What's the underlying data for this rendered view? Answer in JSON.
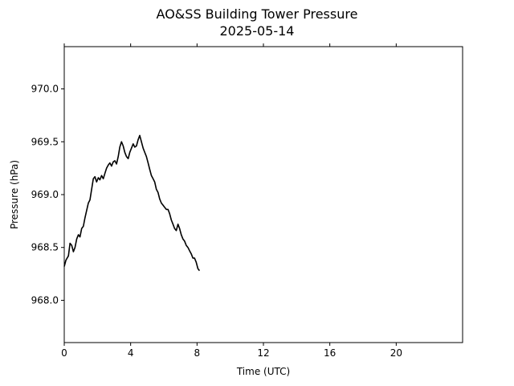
{
  "chart_data": {
    "type": "line",
    "title": "AO&SS Building Tower Pressure",
    "subtitle": "2025-05-14",
    "xlabel": "Time (UTC)",
    "ylabel": "Pressure (hPa)",
    "xlim": [
      0,
      24
    ],
    "ylim": [
      967.6,
      970.4
    ],
    "xticks": [
      0,
      4,
      8,
      12,
      16,
      20
    ],
    "xtick_labels": [
      "0",
      "4",
      "8",
      "12",
      "16",
      "20"
    ],
    "yticks": [
      968.0,
      968.5,
      969.0,
      969.5,
      970.0
    ],
    "ytick_labels": [
      "968.0",
      "968.5",
      "969.0",
      "969.5",
      "970.0"
    ],
    "grid": false,
    "legend": "none",
    "line_color": "#000000",
    "series": [
      {
        "x": [
          0.0,
          0.1,
          0.25,
          0.35,
          0.45,
          0.55,
          0.65,
          0.75,
          0.85,
          0.95,
          1.05,
          1.15,
          1.25,
          1.35,
          1.45,
          1.55,
          1.65,
          1.75,
          1.85,
          1.95,
          2.05,
          2.15,
          2.25,
          2.35,
          2.45,
          2.55,
          2.65,
          2.75,
          2.85,
          2.95,
          3.05,
          3.15,
          3.25,
          3.35,
          3.45,
          3.55,
          3.65,
          3.75,
          3.85,
          3.95,
          4.05,
          4.15,
          4.25,
          4.35,
          4.45,
          4.55,
          4.65,
          4.75,
          4.85,
          4.95,
          5.05,
          5.15,
          5.25,
          5.35,
          5.45,
          5.55,
          5.65,
          5.75,
          5.85,
          5.95,
          6.05,
          6.15,
          6.25,
          6.35,
          6.45,
          6.55,
          6.65,
          6.75,
          6.85,
          6.95,
          7.05,
          7.15,
          7.25,
          7.35,
          7.45,
          7.55,
          7.65,
          7.75,
          7.85,
          7.95,
          8.05,
          8.15
        ],
        "y": [
          968.32,
          968.38,
          968.42,
          968.54,
          968.52,
          968.46,
          968.5,
          968.58,
          968.62,
          968.6,
          968.68,
          968.7,
          968.78,
          968.85,
          968.92,
          968.95,
          969.05,
          969.15,
          969.17,
          969.12,
          969.16,
          969.14,
          969.18,
          969.15,
          969.2,
          969.25,
          969.28,
          969.3,
          969.27,
          969.31,
          969.32,
          969.29,
          969.36,
          969.45,
          969.5,
          969.46,
          969.4,
          969.36,
          969.34,
          969.4,
          969.44,
          969.48,
          969.45,
          969.46,
          969.52,
          969.56,
          969.5,
          969.44,
          969.4,
          969.36,
          969.3,
          969.24,
          969.18,
          969.15,
          969.12,
          969.05,
          969.02,
          968.96,
          968.92,
          968.9,
          968.88,
          968.86,
          968.86,
          968.82,
          968.76,
          968.72,
          968.68,
          968.66,
          968.72,
          968.68,
          968.62,
          968.58,
          968.56,
          968.52,
          968.5,
          968.47,
          968.44,
          968.4,
          968.4,
          968.36,
          968.3,
          968.28
        ]
      }
    ]
  }
}
